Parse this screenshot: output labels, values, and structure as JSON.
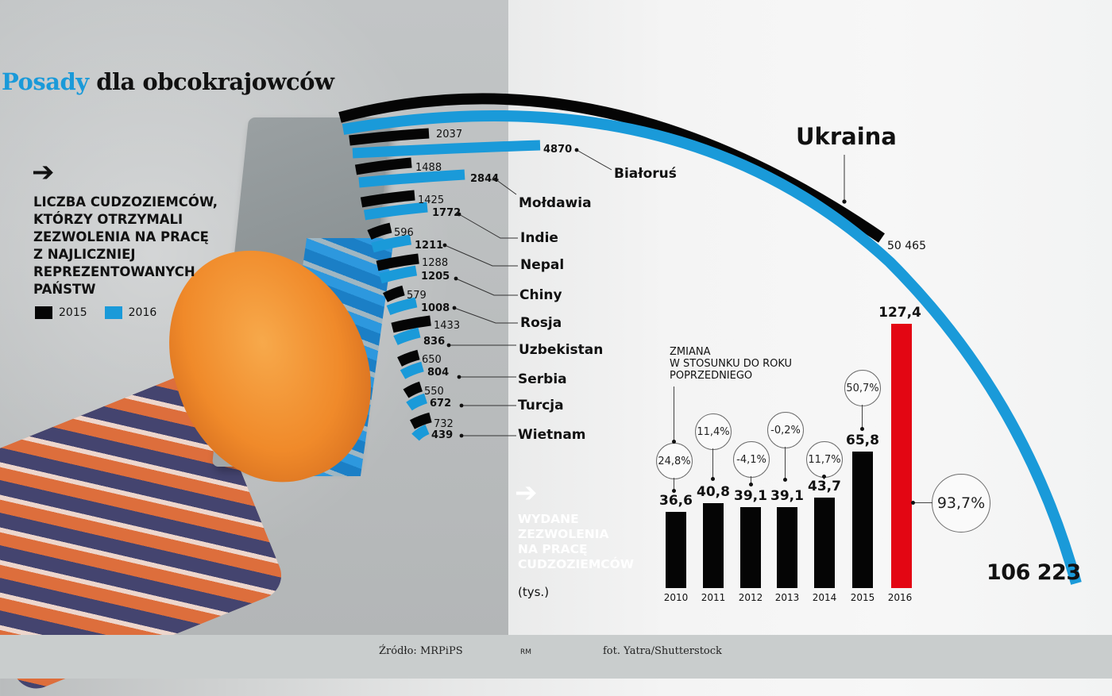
{
  "title": {
    "highlight": "Posady",
    "rest": "dla obcokrajowców"
  },
  "legend": {
    "heading_lines": [
      "LICZBA CUDZOZIEMCÓW,",
      "KTÓRZY OTRZYMALI",
      "ZEZWOLENIA NA PRACĘ",
      "Z NAJLICZNIEJ",
      "REPREZENTOWANYCH",
      "PAŃSTW"
    ],
    "items": [
      {
        "label": "2015",
        "color": "#050505"
      },
      {
        "label": "2016",
        "color": "#1a9ad9"
      }
    ]
  },
  "ukraine": {
    "label": "Ukraina",
    "v2015": "50 465",
    "v2016": "106 223"
  },
  "countries": [
    {
      "name": "Białoruś",
      "v2015": "2037",
      "v2016": "4870"
    },
    {
      "name": "Mołdawia",
      "v2015": "1488",
      "v2016": "2844"
    },
    {
      "name": "Indie",
      "v2015": "1425",
      "v2016": "1772"
    },
    {
      "name": "Nepal",
      "v2015": "596",
      "v2016": "1211"
    },
    {
      "name": "Chiny",
      "v2015": "1288",
      "v2016": "1205"
    },
    {
      "name": "Rosja",
      "v2015": "579",
      "v2016": "1008"
    },
    {
      "name": "Uzbekistan",
      "v2015": "1433",
      "v2016": "836"
    },
    {
      "name": "Serbia",
      "v2015": "650",
      "v2016": "804"
    },
    {
      "name": "Turcja",
      "v2015": "550",
      "v2016": "672"
    },
    {
      "name": "Wietnam",
      "v2015": "732",
      "v2016": "439"
    }
  ],
  "permits": {
    "heading_lines": [
      "WYDANE",
      "ZEZWOLENIA",
      "NA PRACĘ",
      "CUDZOZIEMCÓW"
    ],
    "unit": "(tys.)",
    "change_heading_lines": [
      "ZMIANA",
      "W STOSUNKU DO ROKU",
      "POPRZEDNIEGO"
    ],
    "years": [
      {
        "year": "2010",
        "value": "36,6",
        "change": "24,8%"
      },
      {
        "year": "2011",
        "value": "40,8",
        "change": "11,4%"
      },
      {
        "year": "2012",
        "value": "39,1",
        "change": "-4,1%"
      },
      {
        "year": "2013",
        "value": "39,1",
        "change": "-0,2%"
      },
      {
        "year": "2014",
        "value": "43,7",
        "change": "11,7%"
      },
      {
        "year": "2015",
        "value": "65,8",
        "change": "50,7%"
      },
      {
        "year": "2016",
        "value": "127,4",
        "change": "93,7%"
      }
    ]
  },
  "footer": {
    "source": "Źródło: MRPiPS",
    "author": "RM",
    "photo": "fot. Yatra/Shutterstock"
  },
  "colors": {
    "blue": "#1a9ad9",
    "black": "#050505",
    "red": "#e30613"
  },
  "chart_data": [
    {
      "type": "bar",
      "title": "Liczba cudzoziemców, którzy otrzymali zezwolenia na pracę z najliczniej reprezentowanych państw",
      "orientation": "radial/arc",
      "categories": [
        "Ukraina",
        "Białoruś",
        "Mołdawia",
        "Indie",
        "Nepal",
        "Chiny",
        "Rosja",
        "Uzbekistan",
        "Serbia",
        "Turcja",
        "Wietnam"
      ],
      "series": [
        {
          "name": "2015",
          "values": [
            50465,
            2037,
            1488,
            1425,
            596,
            1288,
            579,
            1433,
            650,
            550,
            732
          ]
        },
        {
          "name": "2016",
          "values": [
            106223,
            4870,
            2844,
            1772,
            1211,
            1205,
            1008,
            836,
            804,
            672,
            439
          ]
        }
      ],
      "legend": [
        "2015",
        "2016"
      ]
    },
    {
      "type": "bar",
      "title": "Wydane zezwolenia na pracę cudzoziemców (tys.)",
      "categories": [
        "2010",
        "2011",
        "2012",
        "2013",
        "2014",
        "2015",
        "2016"
      ],
      "values": [
        36.6,
        40.8,
        39.1,
        39.1,
        43.7,
        65.8,
        127.4
      ],
      "annotations": {
        "title": "Zmiana w stosunku do roku poprzedniego",
        "values": [
          "24,8%",
          "11,4%",
          "-4,1%",
          "-0,2%",
          "11,7%",
          "50,7%",
          "93,7%"
        ]
      },
      "xlabel": "",
      "ylabel": "tys.",
      "grid": false
    }
  ]
}
